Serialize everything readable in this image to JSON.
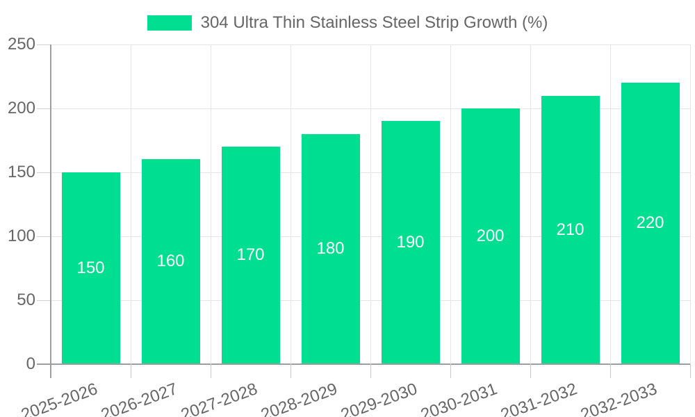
{
  "chart_data": {
    "type": "bar",
    "title": "304 Ultra Thin Stainless Steel Strip Growth (%)",
    "categories": [
      "2025-2026",
      "2026-2027",
      "2027-2028",
      "2028-2029",
      "2029-2030",
      "2030-2031",
      "2031-2032",
      "2032-2033"
    ],
    "series": [
      {
        "name": "304 Ultra Thin Stainless Steel Strip Growth (%)",
        "values": [
          150,
          160,
          170,
          180,
          190,
          200,
          210,
          220
        ]
      }
    ],
    "values": [
      150,
      160,
      170,
      180,
      190,
      200,
      210,
      220
    ],
    "value_labels": [
      "150",
      "160",
      "170",
      "180",
      "190",
      "200",
      "210",
      "220"
    ],
    "xlabel": "",
    "ylabel": "",
    "ylim": [
      0,
      250
    ],
    "yticks": [
      0,
      50,
      100,
      150,
      200,
      250
    ],
    "grid": true,
    "legend_position": "top",
    "bar_color": "#00DE91",
    "value_label_color": "#ffffff",
    "axis_text_color": "#666666"
  }
}
